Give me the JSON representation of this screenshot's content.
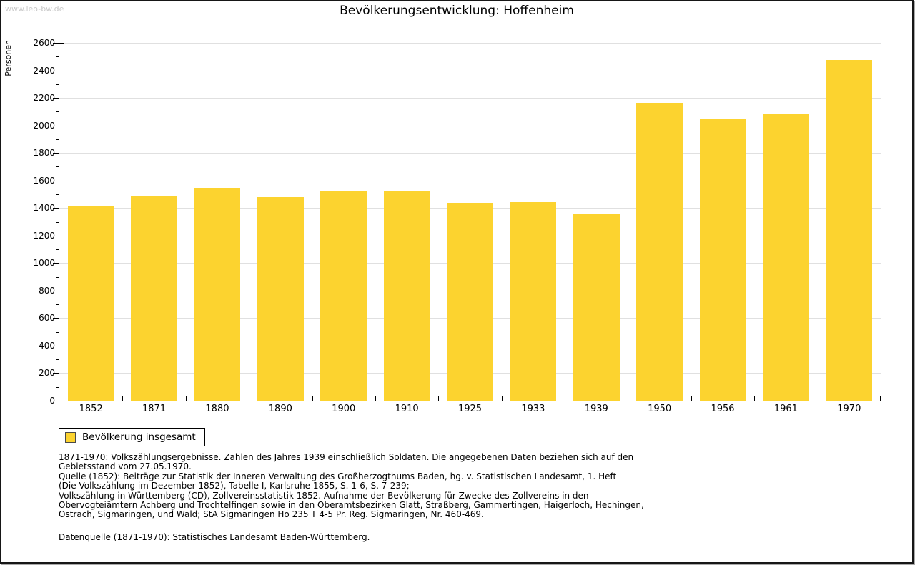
{
  "watermark": "www.leo-bw.de",
  "title": "Bevölkerungsentwicklung: Hoffenheim",
  "chart_data": {
    "type": "bar",
    "title": "Bevölkerungsentwicklung: Hoffenheim",
    "xlabel": "",
    "ylabel": "Personen",
    "categories": [
      "1852",
      "1871",
      "1880",
      "1890",
      "1900",
      "1910",
      "1925",
      "1933",
      "1939",
      "1950",
      "1956",
      "1961",
      "1970"
    ],
    "values": [
      1412,
      1489,
      1544,
      1477,
      1520,
      1528,
      1437,
      1445,
      1362,
      2164,
      2050,
      2086,
      2473
    ],
    "series_name": "Bevölkerung insgesamt",
    "ylim": [
      0,
      2600
    ],
    "ytick_label_step": 200,
    "ytick_minor_step": 100,
    "grid": true,
    "legend_position": "bottom-left",
    "bar_color": "#fcd32f",
    "grid_color": "#e0e0e0",
    "axis_color": "#000000"
  },
  "legend": {
    "label": "Bevölkerung insgesamt"
  },
  "footnotes": {
    "lines": [
      "1871-1970: Volkszählungsergebnisse. Zahlen des Jahres 1939 einschließlich Soldaten. Die angegebenen Daten beziehen sich auf den",
      "Gebietsstand vom 27.05.1970.",
      "Quelle (1852): Beiträge zur Statistik der Inneren Verwaltung des Großherzogthums Baden, hg. v. Statistischen Landesamt, 1. Heft",
      "(Die Volkszählung im Dezember 1852), Tabelle I, Karlsruhe 1855, S. 1-6, S. 7-239;",
      "Volkszählung in Württemberg (CD), Zollvereinsstatistik 1852. Aufnahme der Bevölkerung für Zwecke des Zollvereins in den",
      "Obervogteiämtern Achberg und Trochtelfingen sowie in den Oberamtsbezirken Glatt, Straßberg, Gammertingen, Haigerloch, Hechingen,",
      "Ostrach, Sigmaringen, und Wald; StA Sigmaringen Ho 235 T 4-5 Pr. Reg. Sigmaringen, Nr. 460-469."
    ],
    "datasource": "Datenquelle (1871-1970): Statistisches Landesamt Baden-Württemberg."
  }
}
